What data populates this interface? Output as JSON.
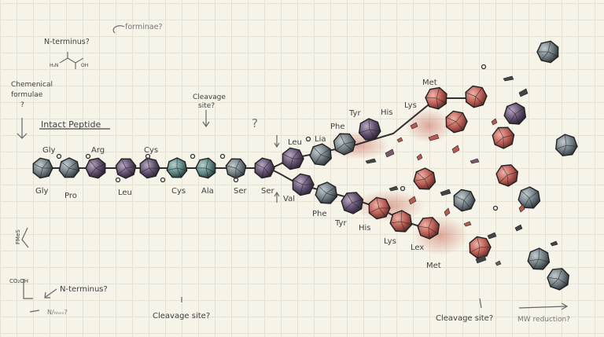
{
  "colors": {
    "paper": "#f6f3e8",
    "grid": "#e6e1d0",
    "bead_gray": "#6e7a80",
    "bead_purple": "#6a5a78",
    "bead_teal": "#5f8585",
    "bead_red": "#b85a52",
    "ink": "#3b3b3b",
    "stain": "#c96a5c"
  },
  "labels": {
    "title": "Intact Peptide",
    "n_terminus_top": "N-terminus?",
    "formulae_top": "forminae?",
    "chem_formula": "Chemenical formulae ?",
    "cleavage_top": "Cleavage site?",
    "question_mark": "?",
    "n_terminus_bottom": "N-terminus?",
    "nh_bottom": "N/ₕₕₑₙ?",
    "cleavage_bottom_left": "Cleavage site?",
    "cleavage_bottom_right": "Cleavage site?",
    "mw_reduction": "MW reduction?",
    "left_axis_1": "FMeS",
    "left_axis_2": "CO₂OH",
    "struct_a": "H₂N",
    "struct_b": "OH"
  },
  "chain_top_labels": [
    "Gly",
    "Arg",
    "Cys"
  ],
  "chain_bottom_labels": [
    "Gly",
    "Pro",
    "Leu",
    "Cys",
    "Ala",
    "Ser",
    "Ser"
  ],
  "upper_branch_labels": [
    "Leu",
    "Lia",
    "Phe",
    "Tyr",
    "His",
    "Lys",
    "Met"
  ],
  "lower_branch_labels": [
    "Val",
    "Phe",
    "Tyr",
    "His",
    "Lys",
    "Lex",
    "Met"
  ],
  "icons": [
    "polyhedron-bead-icon",
    "arrow-icon",
    "fragment-shard-icon",
    "molecule-structure-icon"
  ]
}
